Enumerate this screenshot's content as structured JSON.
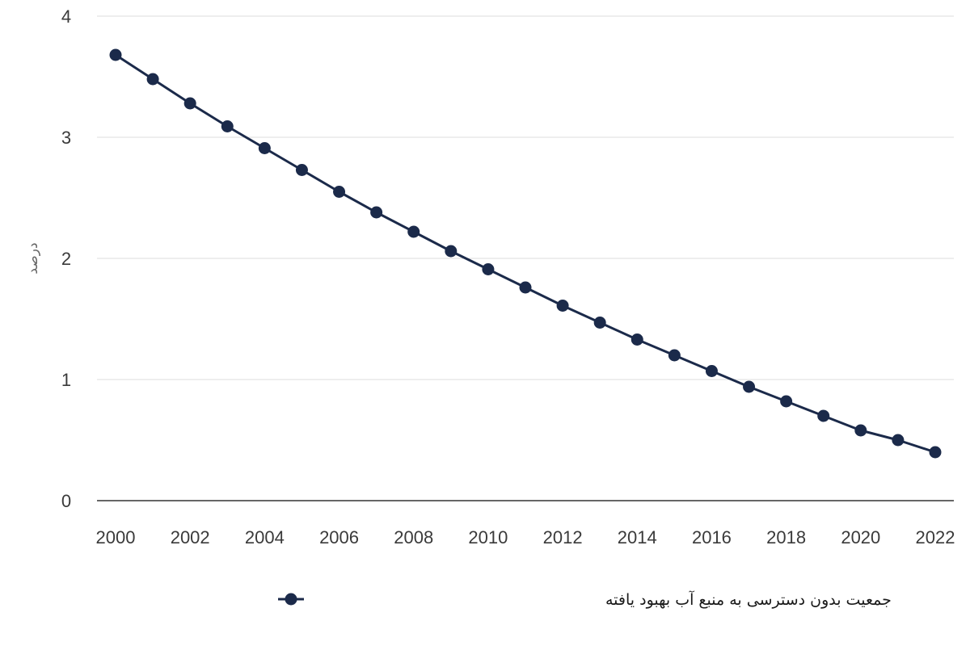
{
  "chart_data": {
    "type": "line",
    "title": "",
    "xlabel": "",
    "ylabel": "درصد",
    "ylim": [
      0,
      4
    ],
    "yticks": [
      0,
      1,
      2,
      3,
      4
    ],
    "xlim": [
      2000,
      2022
    ],
    "xticks": [
      2000,
      2002,
      2004,
      2006,
      2008,
      2010,
      2012,
      2014,
      2016,
      2018,
      2020,
      2022
    ],
    "grid": true,
    "legend_position": "bottom-center",
    "x": [
      2000,
      2001,
      2002,
      2003,
      2004,
      2005,
      2006,
      2007,
      2008,
      2009,
      2010,
      2011,
      2012,
      2013,
      2014,
      2015,
      2016,
      2017,
      2018,
      2019,
      2020,
      2021,
      2022
    ],
    "series": [
      {
        "name": "جمعیت بدون دسترسی به منبع آب بهبود یافته",
        "color": "#1b2a4a",
        "values": [
          3.68,
          3.48,
          3.28,
          3.09,
          2.91,
          2.73,
          2.55,
          2.38,
          2.22,
          2.06,
          1.91,
          1.76,
          1.61,
          1.47,
          1.33,
          1.2,
          1.07,
          0.94,
          0.82,
          0.7,
          0.58,
          0.5,
          0.4
        ]
      }
    ]
  }
}
